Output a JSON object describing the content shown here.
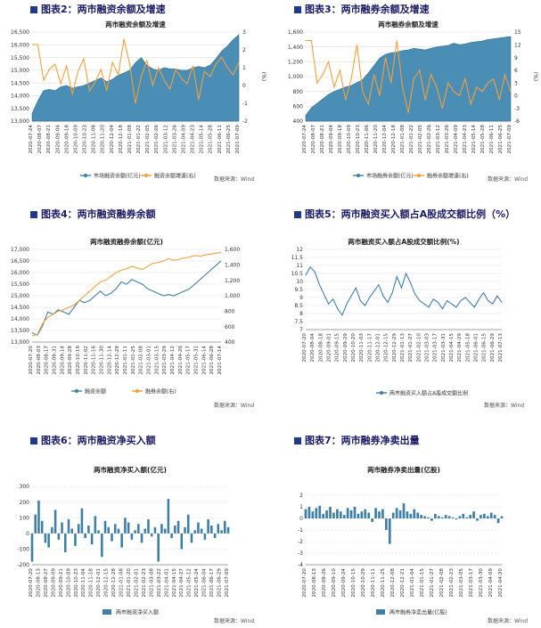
{
  "sources": "数据来源：Wind",
  "colors": {
    "blue": "#3f7fa6",
    "area": "#4a8db5",
    "orange": "#f2a03c",
    "grid": "#dcdcdc",
    "heading": "#1a1a66"
  },
  "chart_data": [
    {
      "id": "c2",
      "heading": "图表2：两市融资余额及增速",
      "title": "两市融资余额及增速",
      "type": "area",
      "ylim": [
        13000,
        16500
      ],
      "yticks": [
        "13,000",
        "13,500",
        "14,000",
        "14,500",
        "15,000",
        "15,500",
        "16,000",
        "16,500"
      ],
      "y2lim": [
        -2,
        3
      ],
      "y2ticks": [
        "-2",
        "-1",
        "0",
        "1",
        "2",
        "3"
      ],
      "y2label": "(%)",
      "xticks": [
        "2020-07-24",
        "2020-08-07",
        "2020-08-21",
        "2020-09-04",
        "2020-09-18",
        "2020-10-09",
        "2020-10-23",
        "2020-11-06",
        "2020-11-20",
        "2020-12-04",
        "2020-12-18",
        "2021-01-08",
        "2021-01-22",
        "2021-02-05",
        "2021-02-26",
        "2021-03-12",
        "2021-03-26",
        "2021-04-09",
        "2021-04-23",
        "2021-05-14",
        "2021-05-28",
        "2021-06-11",
        "2021-06-25",
        "2021-07-09"
      ],
      "series": [
        {
          "name": "市场融资余额(亿元)",
          "kind": "area",
          "values": [
            13300,
            13800,
            14200,
            14250,
            14200,
            14350,
            14400,
            14300,
            14350,
            14400,
            14500,
            14600,
            14700,
            14550,
            14650,
            14800,
            14900,
            15000,
            15300,
            15500,
            15200,
            15050,
            15000,
            15100,
            15050,
            15050,
            15000,
            15000,
            15100,
            15150,
            15100,
            15200,
            15450,
            15750,
            15950,
            16200,
            16400
          ]
        },
        {
          "name": "融资余额增速(右)",
          "kind": "line",
          "values": [
            2.3,
            2.3,
            0.3,
            0.9,
            1.2,
            0.1,
            1.1,
            -0.5,
            0.8,
            1.5,
            -0.3,
            0.2,
            0.9,
            -0.3,
            1.3,
            0.6,
            2.6,
            1.2,
            -1.0,
            0.5,
            1.4,
            0.0,
            1.0,
            0.3,
            -0.2,
            0.9,
            0.4,
            0.1,
            1.1,
            -0.8,
            0.8,
            0.5,
            1.2,
            1.6,
            1.0,
            0.6,
            1.3
          ]
        }
      ]
    },
    {
      "id": "c3",
      "heading": "图表3：两市融券余额及增速",
      "title": "两市融券余额及增速",
      "type": "area",
      "ylim": [
        400,
        1600
      ],
      "yticks": [
        "400",
        "600",
        "800",
        "1,000",
        "1,200",
        "1,400",
        "1,600"
      ],
      "y2lim": [
        -6,
        15
      ],
      "y2ticks": [
        "-6",
        "-3",
        "0",
        "3",
        "6",
        "9",
        "12",
        "15"
      ],
      "y2label": "(%)",
      "xticks": [
        "2020-07-24",
        "2020-08-07",
        "2020-08-21",
        "2020-09-04",
        "2020-09-18",
        "2020-10-09",
        "2020-10-23",
        "2020-11-06",
        "2020-11-20",
        "2020-12-04",
        "2020-12-18",
        "2021-01-08",
        "2021-01-22",
        "2021-02-05",
        "2021-02-26",
        "2021-03-12",
        "2021-03-26",
        "2021-04-09",
        "2021-04-23",
        "2021-05-14",
        "2021-05-28",
        "2021-06-11",
        "2021-06-25",
        "2021-07-09"
      ],
      "series": [
        {
          "name": "市场融券余额(亿元)",
          "kind": "area",
          "values": [
            480,
            580,
            640,
            700,
            760,
            800,
            830,
            860,
            880,
            920,
            960,
            1050,
            1150,
            1250,
            1300,
            1320,
            1330,
            1350,
            1360,
            1380,
            1370,
            1360,
            1380,
            1400,
            1410,
            1420,
            1450,
            1430,
            1440,
            1460,
            1470,
            1480,
            1500,
            1510,
            1520,
            1530,
            1540
          ]
        },
        {
          "name": "融券余额增速(右)",
          "kind": "line",
          "values": [
            13,
            13,
            3,
            5,
            8,
            2,
            6,
            -1,
            4,
            12,
            1,
            -2,
            5,
            0,
            9,
            3,
            13,
            2,
            -4,
            4,
            6,
            -1,
            5,
            2,
            -3,
            3,
            1,
            0,
            4,
            -2,
            2,
            1,
            3,
            4,
            -1,
            5,
            1
          ]
        }
      ]
    },
    {
      "id": "c4",
      "heading": "图表4：两市融资融券余额",
      "title": "两市融资融券余额(亿元)",
      "type": "line",
      "ylim": [
        13000,
        17000
      ],
      "yticks": [
        "13,000",
        "13,500",
        "14,000",
        "14,500",
        "15,000",
        "15,500",
        "16,000",
        "16,500",
        "17,000"
      ],
      "y2lim": [
        400,
        1600
      ],
      "y2ticks": [
        "400",
        "600",
        "800",
        "1,000",
        "1,200",
        "1,400",
        "1,600"
      ],
      "y2label": "",
      "xticks": [
        "2020-07-20",
        "2020-08-03",
        "2020-08-17",
        "2020-08-31",
        "2020-09-14",
        "2020-09-28",
        "2020-10-19",
        "2020-11-02",
        "2020-11-16",
        "2020-11-30",
        "2020-12-14",
        "2020-12-28",
        "2021-01-11",
        "2021-01-25",
        "2021-02-08",
        "2021-03-01",
        "2021-03-15",
        "2021-03-29",
        "2021-04-12",
        "2021-04-26",
        "2021-05-17",
        "2021-05-31",
        "2021-06-14",
        "2021-06-28",
        "2021-07-14"
      ],
      "series": [
        {
          "name": "融资余额",
          "kind": "line",
          "values": [
            13400,
            13300,
            13700,
            14300,
            14200,
            14400,
            14300,
            14200,
            14500,
            14800,
            14700,
            14800,
            15000,
            15200,
            15000,
            15100,
            15300,
            15600,
            15500,
            15700,
            15600,
            15500,
            15300,
            15200,
            15100,
            15000,
            15050,
            15000,
            15100,
            15200,
            15300,
            15500,
            15700,
            15900,
            16100,
            16300,
            16500
          ]
        },
        {
          "name": "融券余额(右)",
          "kind": "line",
          "values": [
            480,
            500,
            640,
            720,
            760,
            800,
            820,
            850,
            880,
            940,
            1000,
            1060,
            1120,
            1180,
            1200,
            1250,
            1300,
            1330,
            1350,
            1380,
            1360,
            1340,
            1380,
            1420,
            1430,
            1450,
            1480,
            1460,
            1470,
            1490,
            1500,
            1520,
            1510,
            1530,
            1540,
            1550,
            1560
          ]
        }
      ]
    },
    {
      "id": "c5",
      "heading": "图表5：两市融资买入额占A股成交额比例（%）",
      "title": "两市融资买入额占A股成交额比例(%)",
      "type": "line",
      "ylim": [
        7,
        12
      ],
      "yticks": [
        "7",
        "7.5",
        "8",
        "8.5",
        "9",
        "9.5",
        "10",
        "10.5",
        "11",
        "11.5",
        "12"
      ],
      "xticks": [
        "2020-07-20",
        "2020-08-04",
        "2020-08-18",
        "2020-09-01",
        "2020-09-15",
        "2020-09-29",
        "2020-10-20",
        "2020-11-03",
        "2020-11-17",
        "2020-12-01",
        "2020-12-15",
        "2020-12-29",
        "2021-01-13",
        "2021-01-27",
        "2021-02-10",
        "2021-03-03",
        "2021-03-17",
        "2021-03-31",
        "2021-04-15",
        "2021-04-29",
        "2021-05-18",
        "2021-06-01",
        "2021-06-15",
        "2021-06-29",
        "2021-07-13"
      ],
      "series": [
        {
          "name": "两市融资买入额占A股成交额比例",
          "kind": "line",
          "values": [
            10.4,
            10.9,
            10.6,
            9.8,
            9.2,
            8.6,
            8.9,
            8.3,
            7.9,
            8.6,
            9.1,
            9.6,
            8.8,
            8.5,
            9.0,
            9.4,
            9.8,
            9.1,
            8.7,
            9.3,
            10.3,
            9.6,
            10.5,
            9.9,
            9.2,
            8.8,
            8.6,
            8.4,
            8.9,
            8.7,
            8.3,
            8.8,
            8.6,
            8.4,
            8.8,
            9.0,
            8.7,
            8.4,
            8.9,
            9.3,
            8.8,
            8.6,
            9.1,
            8.7
          ]
        }
      ]
    },
    {
      "id": "c6",
      "heading": "图表6：两市融资净买入额",
      "title": "两市融资净买入额(亿元)",
      "type": "bar",
      "ylim": [
        -200,
        300
      ],
      "yticks": [
        "-200",
        "-100",
        "0",
        "100",
        "200",
        "300"
      ],
      "xticks": [
        "2020-07-20",
        "2020-08-13",
        "2020-08-27",
        "2020-09-09",
        "2020-09-21",
        "2020-10-09",
        "2020-10-23",
        "2020-11-04",
        "2020-11-18",
        "2020-12-01",
        "2020-12-15",
        "2020-12-28",
        "2021-01-08",
        "2021-01-20",
        "2021-02-01",
        "2021-02-23",
        "2021-03-08",
        "2021-03-22",
        "2021-04-01",
        "2021-04-15",
        "2021-04-27",
        "2021-05-12",
        "2021-05-24",
        "2021-06-04",
        "2021-06-17",
        "2021-06-29",
        "2021-07-09"
      ],
      "series": [
        {
          "name": "两市融资净买入额",
          "kind": "bar",
          "values": [
            -180,
            120,
            210,
            80,
            -60,
            -90,
            40,
            150,
            -40,
            70,
            -120,
            90,
            30,
            -80,
            60,
            160,
            -30,
            50,
            -70,
            110,
            20,
            -150,
            80,
            40,
            -50,
            60,
            30,
            -90,
            100,
            70,
            -40,
            20,
            60,
            -60,
            30,
            90,
            -20,
            40,
            -180,
            60,
            30,
            220,
            -30,
            50,
            80,
            -100,
            40,
            120,
            -60,
            20,
            70,
            30,
            -40,
            90,
            50,
            -30,
            60,
            20,
            80,
            40
          ]
        }
      ]
    },
    {
      "id": "c7",
      "heading": "图表7：两市融券净卖出量",
      "title": "两市融券净卖出量(亿股)",
      "type": "bar",
      "ylim": [
        -4,
        2
      ],
      "yticks": [
        "-4",
        "-3",
        "-2",
        "-1",
        "0",
        "1",
        "2"
      ],
      "xticks": [
        "2020-07-20",
        "2020-08-13",
        "2020-08-26",
        "2020-09-10",
        "2020-09-24",
        "2020-10-15",
        "2020-10-29",
        "2020-11-11",
        "2020-11-25",
        "2020-12-08",
        "2020-12-21",
        "2021-01-04",
        "2021-01-15",
        "2021-01-27",
        "2021-02-08",
        "2021-02-23",
        "2021-03-05",
        "2021-03-17",
        "2021-03-30",
        "2021-04-09",
        "2021-04-20"
      ],
      "series": [
        {
          "name": "两市融券净卖出量(亿股)",
          "kind": "bar",
          "values": [
            0.8,
            1.0,
            0.6,
            0.9,
            1.1,
            0.4,
            0.7,
            1.0,
            0.5,
            0.8,
            0.6,
            0.3,
            0.9,
            0.7,
            1.0,
            0.4,
            0.6,
            0.8,
            0.5,
            -0.3,
            0.9,
            0.6,
            0.8,
            -1.0,
            -2.2,
            0.5,
            0.9,
            0.7,
            1.3,
            0.6,
            0.4,
            0.8,
            0.5,
            0.3,
            0.2,
            0.1,
            -0.2,
            0.4,
            0.2,
            0.1,
            0.3,
            0.2,
            0.1,
            -0.1,
            0.2,
            0.4,
            0.1,
            0.3,
            0.6,
            -0.2,
            0.3,
            0.4,
            0.2,
            0.5,
            0.3,
            -0.4,
            0.2
          ]
        }
      ]
    }
  ]
}
